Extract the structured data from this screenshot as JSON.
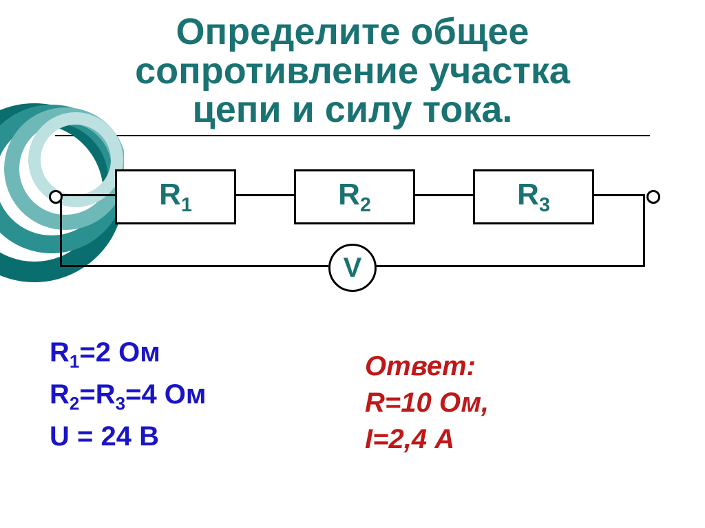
{
  "title": {
    "line1": "Определите общее",
    "line2": "сопротивление участка",
    "line3": "цепи и силу тока.",
    "color": "#1a7272",
    "fontsize": 54
  },
  "circuit": {
    "resistors": [
      {
        "label_base": "R",
        "label_sub": "1"
      },
      {
        "label_base": "R",
        "label_sub": "2"
      },
      {
        "label_base": "R",
        "label_sub": "3"
      }
    ],
    "voltmeter_label": "V",
    "resistor_label_color": "#1a7272",
    "resistor_label_fontsize": 44,
    "voltmeter_fontsize": 40,
    "wire_thickness": 3,
    "resistor_w": 170,
    "resistor_h": 74,
    "terminal_d": 14
  },
  "given": {
    "color": "#1a14c8",
    "fontsize": 40,
    "lines": [
      {
        "html": "R<sub>1</sub>=2 Ом"
      },
      {
        "html": "R<sub>2</sub>=R<sub>3</sub>=4 Ом"
      },
      {
        "html": "U = 24 В"
      }
    ]
  },
  "answer": {
    "color": "#c01818",
    "fontsize": 40,
    "lines": [
      "Ответ:",
      "R=10 Ом,",
      "I=2,4 А"
    ]
  },
  "bg_circles": {
    "colors": [
      "#0b6e6e",
      "#2a9090",
      "#6fb8b8",
      "#bde0e0"
    ],
    "stroke": 30
  }
}
